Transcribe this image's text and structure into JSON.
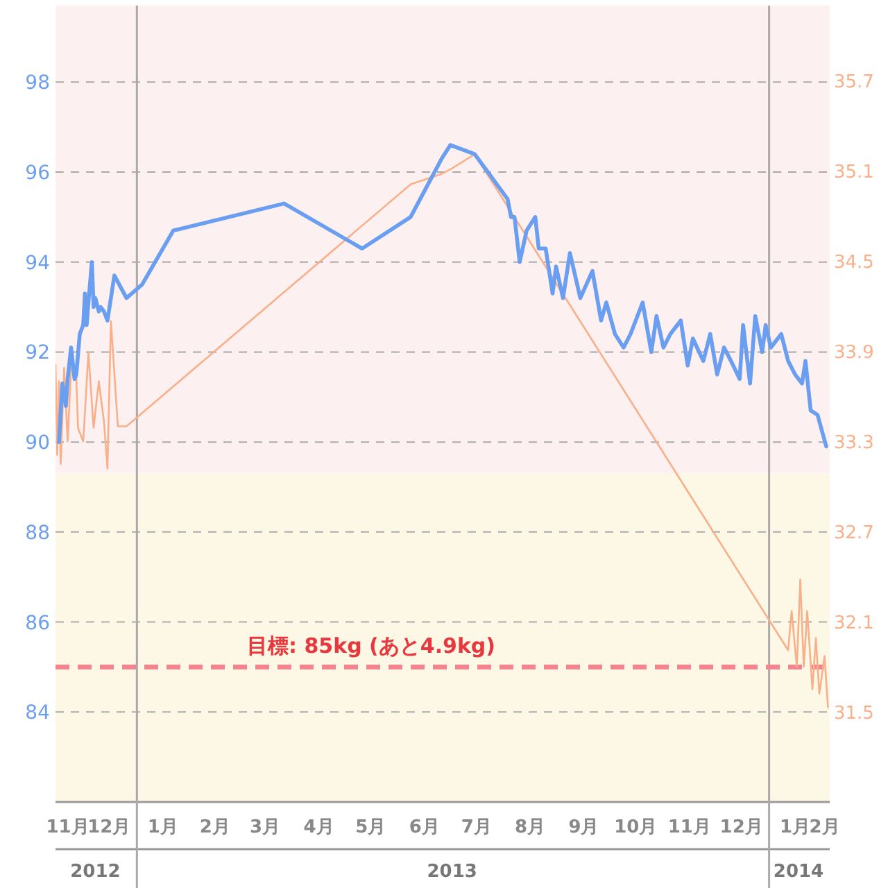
{
  "chart_data": {
    "type": "line",
    "xlim": [
      "2012-11-15",
      "2014-02-05"
    ],
    "ylim": [
      82,
      99.7
    ],
    "yticks": [
      84,
      86,
      88,
      90,
      92,
      94,
      96,
      98
    ],
    "y2lim": [
      30.9,
      36.2
    ],
    "y2ticks": [
      31.5,
      32.1,
      32.7,
      33.3,
      33.9,
      34.5,
      35.1,
      35.7
    ],
    "xticks": [
      {
        "value": "2012-11-22",
        "label": "11月"
      },
      {
        "value": "2012-12-16",
        "label": "12月"
      },
      {
        "value": "2013-01-16",
        "label": "1月"
      },
      {
        "value": "2013-02-15",
        "label": "2月"
      },
      {
        "value": "2013-03-16",
        "label": "3月"
      },
      {
        "value": "2013-04-16",
        "label": "4月"
      },
      {
        "value": "2013-05-16",
        "label": "5月"
      },
      {
        "value": "2013-06-16",
        "label": "6月"
      },
      {
        "value": "2013-07-16",
        "label": "7月"
      },
      {
        "value": "2013-08-16",
        "label": "8月"
      },
      {
        "value": "2013-09-16",
        "label": "9月"
      },
      {
        "value": "2013-10-16",
        "label": "10月"
      },
      {
        "value": "2013-11-16",
        "label": "11月"
      },
      {
        "value": "2013-12-16",
        "label": "12月"
      },
      {
        "value": "2014-01-16",
        "label": "1月"
      },
      {
        "value": "2014-02-02",
        "label": "2月"
      }
    ],
    "x2lim": [
      "2012-11-15",
      "2014-02-05"
    ],
    "x2ticks": [
      {
        "value": "2012-12-08",
        "label": "2012"
      },
      {
        "value": "2013-07-02",
        "label": "2013"
      },
      {
        "value": "2014-01-18",
        "label": "2014"
      }
    ],
    "grid": "y",
    "bands": [
      {
        "axis": "y",
        "from": 89.3,
        "to": 99.7,
        "color": "#fdf0f1"
      },
      {
        "axis": "y",
        "from": 82,
        "to": 89.3,
        "color": "#fdf8e6"
      }
    ],
    "ref_lines": [
      {
        "axis": "x",
        "value": "2013-01-01",
        "color": "#aaaaaa",
        "line_style": "solid"
      },
      {
        "axis": "x",
        "value": "2014-01-01",
        "color": "#aaaaaa",
        "line_style": "solid"
      },
      {
        "axis": "y",
        "value": 85,
        "label": "目標: 85kg (あと4.9kg)",
        "color": "#f4858e",
        "line_style": "dashed"
      }
    ],
    "series": [
      {
        "color": "#6a9ef0",
        "axis": "y",
        "x": [
          "2012-11-17",
          "2012-11-19",
          "2012-11-21",
          "2012-11-22",
          "2012-11-24",
          "2012-11-26",
          "2012-11-27",
          "2012-11-29",
          "2012-12-01",
          "2012-12-02",
          "2012-12-03",
          "2012-12-04",
          "2012-12-06",
          "2012-12-07",
          "2012-12-08",
          "2012-12-10",
          "2012-12-11",
          "2012-12-13",
          "2012-12-15",
          "2012-12-19",
          "2012-12-26",
          "2013-01-04",
          "2013-01-22",
          "2013-03-27",
          "2013-05-11",
          "2013-06-08",
          "2013-06-26",
          "2013-07-01",
          "2013-07-15",
          "2013-08-03",
          "2013-08-05",
          "2013-08-07",
          "2013-08-10",
          "2013-08-14",
          "2013-08-19",
          "2013-08-21",
          "2013-08-25",
          "2013-08-29",
          "2013-08-31",
          "2013-09-04",
          "2013-09-08",
          "2013-09-14",
          "2013-09-21",
          "2013-09-26",
          "2013-09-29",
          "2013-10-04",
          "2013-10-09",
          "2013-10-13",
          "2013-10-20",
          "2013-10-25",
          "2013-10-28",
          "2013-11-01",
          "2013-11-05",
          "2013-11-11",
          "2013-11-15",
          "2013-11-18",
          "2013-11-24",
          "2013-11-28",
          "2013-12-02",
          "2013-12-06",
          "2013-12-10",
          "2013-12-15",
          "2013-12-17",
          "2013-12-21",
          "2013-12-24",
          "2013-12-28",
          "2013-12-30",
          "2014-01-02",
          "2014-01-08",
          "2014-01-12",
          "2014-01-16",
          "2014-01-20",
          "2014-01-22",
          "2014-01-25",
          "2014-01-29",
          "2014-02-03"
        ],
        "values": [
          90.0,
          91.3,
          90.8,
          91.4,
          92.1,
          91.4,
          91.5,
          92.4,
          92.6,
          93.3,
          92.6,
          93.1,
          94.0,
          93.0,
          93.2,
          92.9,
          93.0,
          92.9,
          92.7,
          93.7,
          93.2,
          93.5,
          94.7,
          95.3,
          94.3,
          95.0,
          96.3,
          96.6,
          96.4,
          95.4,
          95.0,
          95.0,
          94.0,
          94.7,
          95.0,
          94.3,
          94.3,
          93.3,
          93.9,
          93.2,
          94.2,
          93.2,
          93.8,
          92.7,
          93.1,
          92.4,
          92.1,
          92.4,
          93.1,
          92.0,
          92.8,
          92.1,
          92.4,
          92.7,
          91.7,
          92.3,
          91.8,
          92.4,
          91.5,
          92.1,
          91.8,
          91.4,
          92.6,
          91.3,
          92.8,
          92.0,
          92.6,
          92.1,
          92.4,
          91.8,
          91.5,
          91.3,
          91.8,
          90.7,
          90.6,
          89.9
        ]
      },
      {
        "color": "#f8b08a",
        "axis": "y2",
        "x": [
          "2012-11-15",
          "2012-11-16",
          "2012-11-17",
          "2012-11-18",
          "2012-11-20",
          "2012-11-22",
          "2012-11-24",
          "2012-11-27",
          "2012-11-28",
          "2012-12-01",
          "2012-12-04",
          "2012-12-07",
          "2012-12-10",
          "2012-12-13",
          "2012-12-15",
          "2012-12-17",
          "2012-12-21",
          "2012-12-26",
          "2013-06-08",
          "2013-06-26",
          "2013-07-01",
          "2013-07-15",
          "2014-01-12",
          "2014-01-14",
          "2014-01-17",
          "2014-01-19",
          "2014-01-21",
          "2014-01-23",
          "2014-01-26",
          "2014-01-28",
          "2014-01-30",
          "2014-02-02",
          "2014-02-04"
        ],
        "values": [
          33.81,
          33.21,
          33.7,
          33.15,
          33.79,
          33.3,
          33.79,
          33.73,
          33.39,
          33.3,
          33.89,
          33.39,
          33.7,
          33.43,
          33.12,
          34.1,
          33.4,
          33.4,
          35.01,
          35.08,
          35.11,
          35.21,
          31.91,
          32.17,
          31.8,
          32.38,
          31.8,
          32.17,
          31.65,
          31.99,
          31.62,
          31.87,
          31.53
        ]
      }
    ]
  }
}
